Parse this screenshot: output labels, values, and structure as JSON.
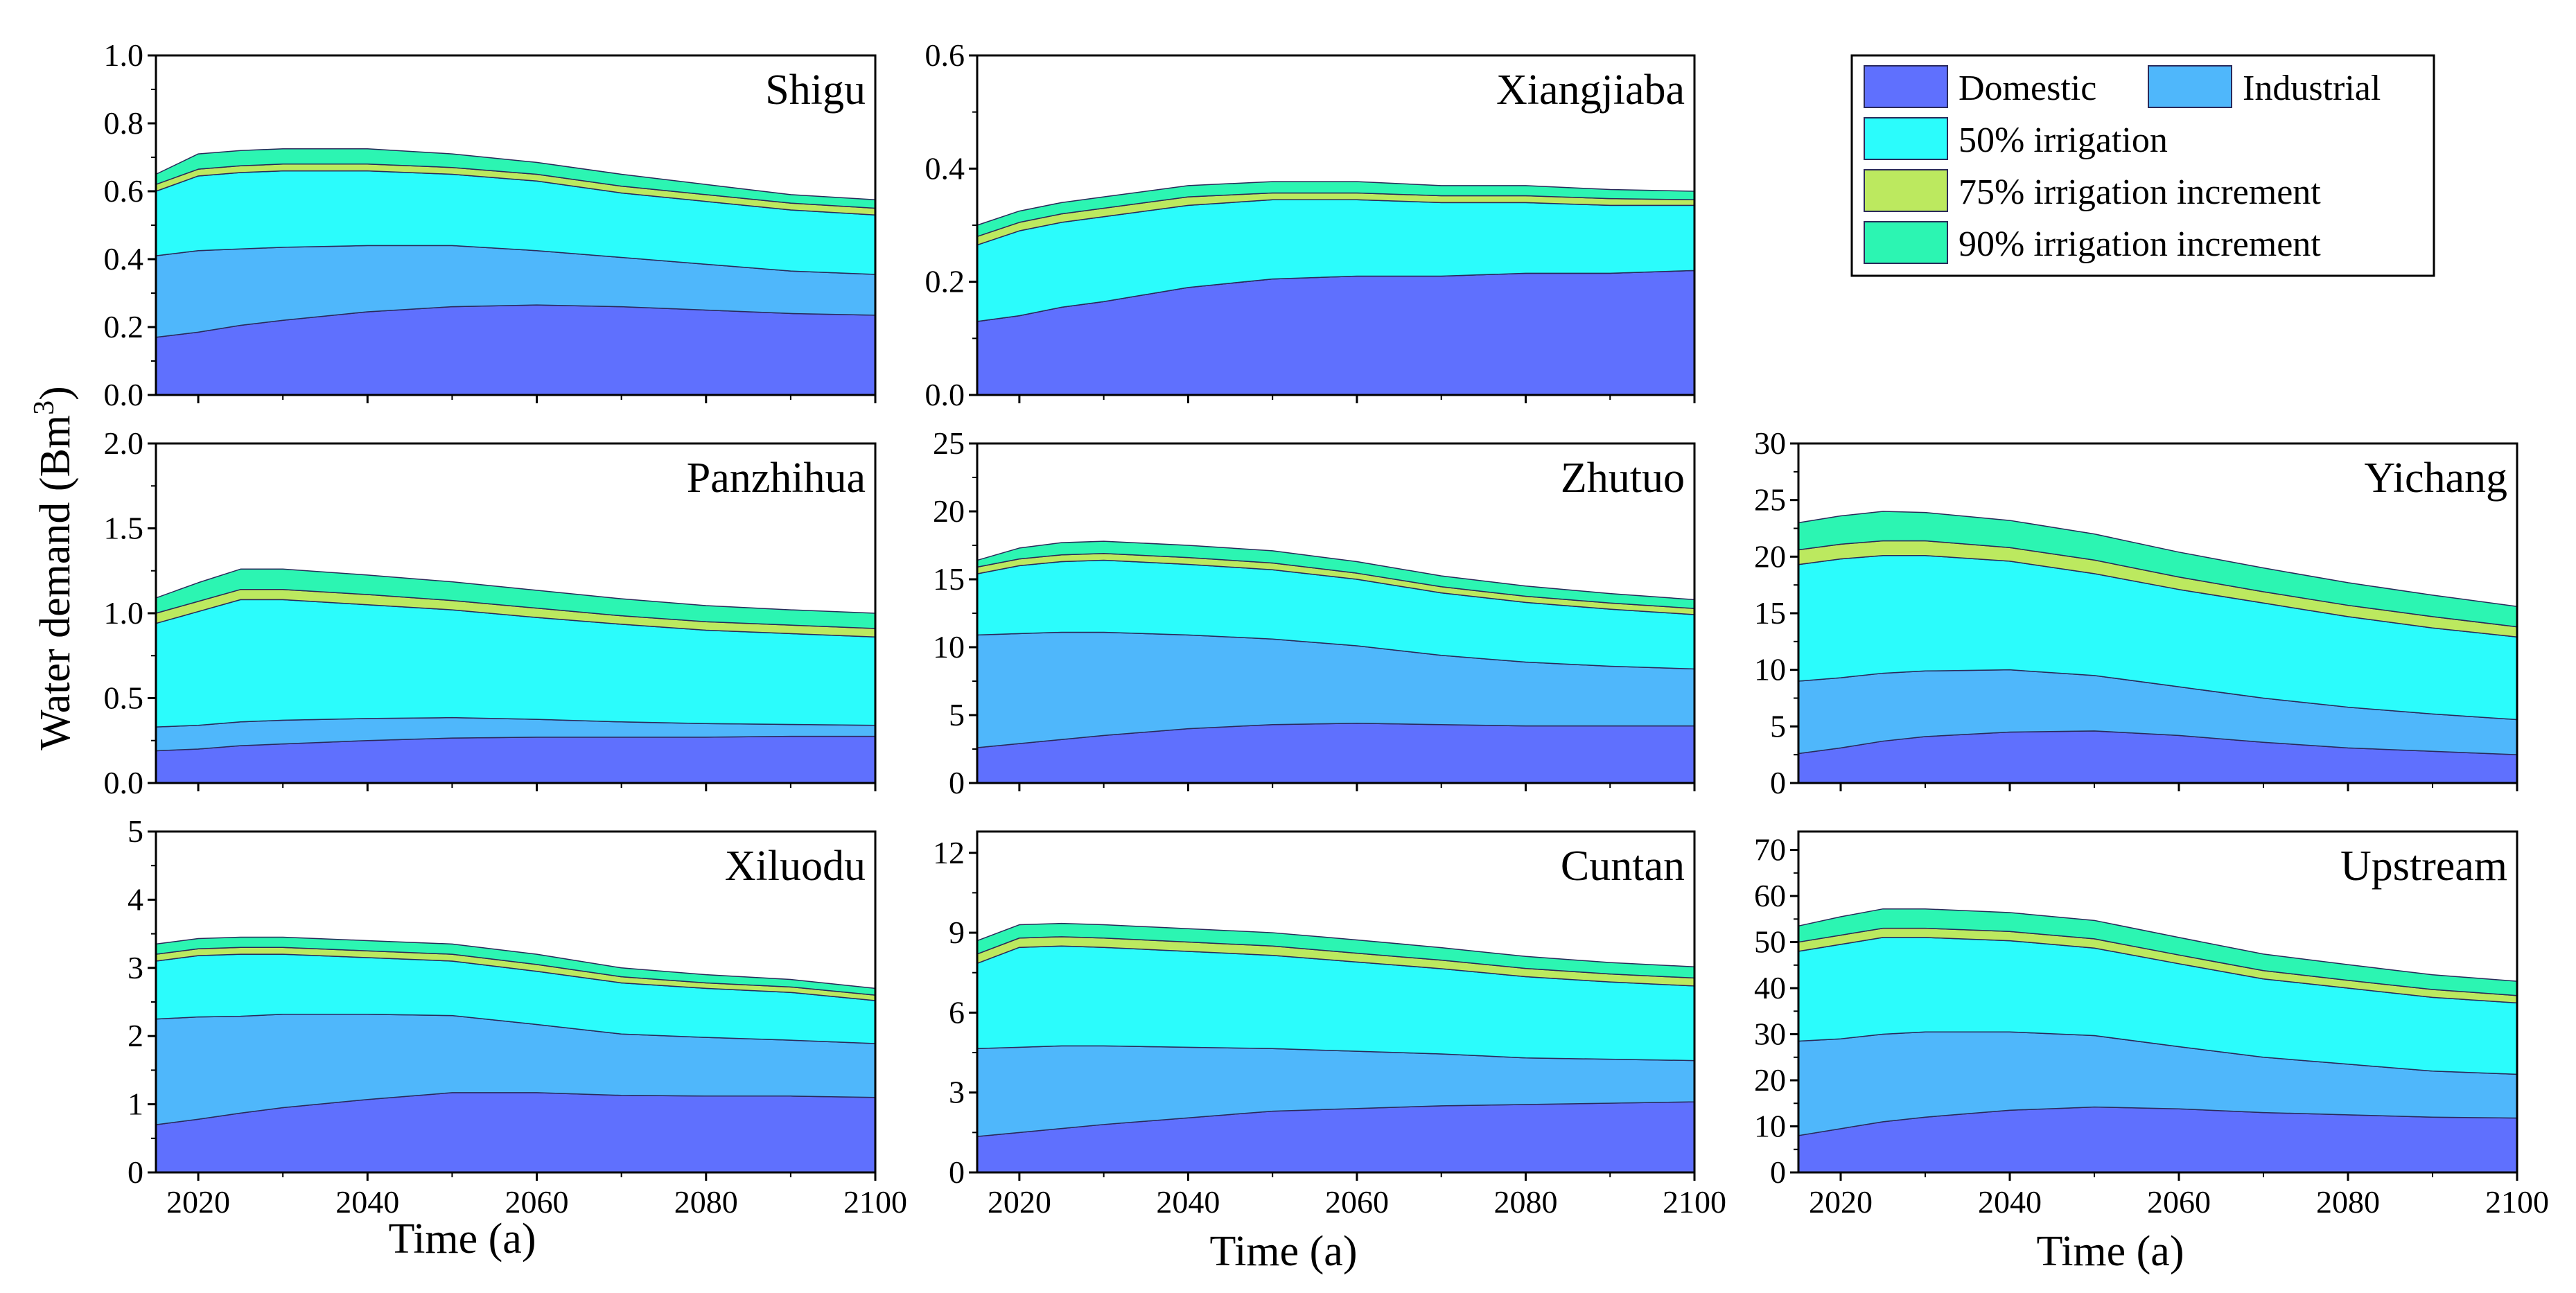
{
  "colors": {
    "domestic": "#5f70fe",
    "industrial": "#4fb7fb",
    "irr50": "#2bfcfc",
    "irr75": "#bce95f",
    "irr90": "#2cf5b2",
    "outline": "#2a2a5a"
  },
  "axis_labels": {
    "ylabel": "Water demand (Bm",
    "ylabel_sup": "3",
    "ylabel_close": ")",
    "xlabel": "Time (a)"
  },
  "legend": {
    "domestic": "Domestic",
    "industrial": "Industrial",
    "irr50": "50% irrigation",
    "irr75": "75% irrigation increment",
    "irr90": "90% irrigation increment"
  },
  "chart_data": [
    {
      "type": "area",
      "title": "Shigu",
      "xlim": [
        2015,
        2100
      ],
      "ylim": [
        0,
        1.0
      ],
      "yticks": [
        "0.0",
        "0.2",
        "0.4",
        "0.6",
        "0.8",
        "1.0"
      ],
      "xticks": [
        "",
        "",
        "",
        "",
        ""
      ],
      "xlabel": "",
      "x": [
        2015,
        2020,
        2025,
        2030,
        2040,
        2050,
        2060,
        2070,
        2080,
        2090,
        2100
      ],
      "series": [
        {
          "name": "Domestic",
          "values": [
            0.17,
            0.185,
            0.205,
            0.22,
            0.245,
            0.26,
            0.265,
            0.26,
            0.25,
            0.24,
            0.235
          ]
        },
        {
          "name": "Industrial",
          "values": [
            0.24,
            0.24,
            0.225,
            0.215,
            0.195,
            0.18,
            0.16,
            0.145,
            0.135,
            0.125,
            0.12
          ]
        },
        {
          "name": "50% irrigation",
          "values": [
            0.19,
            0.22,
            0.225,
            0.225,
            0.22,
            0.21,
            0.205,
            0.19,
            0.185,
            0.18,
            0.175
          ]
        },
        {
          "name": "75% irrigation increment",
          "values": [
            0.02,
            0.02,
            0.02,
            0.02,
            0.02,
            0.02,
            0.02,
            0.02,
            0.02,
            0.02,
            0.02
          ]
        },
        {
          "name": "90% irrigation increment",
          "values": [
            0.03,
            0.045,
            0.045,
            0.045,
            0.045,
            0.04,
            0.035,
            0.035,
            0.03,
            0.025,
            0.025
          ]
        }
      ]
    },
    {
      "type": "area",
      "title": "Xiangjiaba",
      "xlim": [
        2015,
        2100
      ],
      "ylim": [
        0,
        0.6
      ],
      "yticks": [
        "0.0",
        "0.2",
        "0.4",
        "0.6"
      ],
      "xticks": [
        "",
        "",
        "",
        "",
        ""
      ],
      "xlabel": "",
      "x": [
        2015,
        2020,
        2025,
        2030,
        2040,
        2050,
        2060,
        2070,
        2080,
        2090,
        2100
      ],
      "series": [
        {
          "name": "Domestic",
          "values": [
            0.13,
            0.14,
            0.155,
            0.165,
            0.19,
            0.205,
            0.21,
            0.21,
            0.215,
            0.215,
            0.22
          ]
        },
        {
          "name": "Industrial",
          "values": [
            0.0,
            0.0,
            0.0,
            0.0,
            0.0,
            0.0,
            0.0,
            0.0,
            0.0,
            0.0,
            0.0
          ]
        },
        {
          "name": "50% irrigation",
          "values": [
            0.135,
            0.15,
            0.15,
            0.15,
            0.145,
            0.14,
            0.135,
            0.13,
            0.125,
            0.12,
            0.115
          ]
        },
        {
          "name": "75% irrigation increment",
          "values": [
            0.015,
            0.015,
            0.015,
            0.015,
            0.015,
            0.012,
            0.012,
            0.012,
            0.012,
            0.012,
            0.01
          ]
        },
        {
          "name": "90% irrigation increment",
          "values": [
            0.02,
            0.02,
            0.02,
            0.02,
            0.02,
            0.02,
            0.02,
            0.018,
            0.018,
            0.016,
            0.015
          ]
        }
      ]
    },
    {
      "type": "area",
      "title": "Panzhihua",
      "xlim": [
        2015,
        2100
      ],
      "ylim": [
        0,
        2.0
      ],
      "yticks": [
        "0.0",
        "0.5",
        "1.0",
        "1.5",
        "2.0"
      ],
      "xticks": [
        "",
        "",
        "",
        "",
        ""
      ],
      "xlabel": "",
      "x": [
        2015,
        2020,
        2025,
        2030,
        2040,
        2050,
        2060,
        2070,
        2080,
        2090,
        2100
      ],
      "series": [
        {
          "name": "Domestic",
          "values": [
            0.19,
            0.2,
            0.22,
            0.23,
            0.25,
            0.265,
            0.27,
            0.27,
            0.27,
            0.275,
            0.275
          ]
        },
        {
          "name": "Industrial",
          "values": [
            0.14,
            0.14,
            0.14,
            0.14,
            0.13,
            0.12,
            0.105,
            0.09,
            0.08,
            0.07,
            0.065
          ]
        },
        {
          "name": "50% irrigation",
          "values": [
            0.61,
            0.67,
            0.72,
            0.71,
            0.67,
            0.635,
            0.6,
            0.575,
            0.55,
            0.535,
            0.52
          ]
        },
        {
          "name": "75% irrigation increment",
          "values": [
            0.06,
            0.06,
            0.06,
            0.06,
            0.06,
            0.055,
            0.055,
            0.05,
            0.05,
            0.05,
            0.05
          ]
        },
        {
          "name": "90% irrigation increment",
          "values": [
            0.09,
            0.11,
            0.12,
            0.12,
            0.115,
            0.11,
            0.105,
            0.1,
            0.095,
            0.09,
            0.09
          ]
        }
      ]
    },
    {
      "type": "area",
      "title": "Zhutuo",
      "xlim": [
        2015,
        2100
      ],
      "ylim": [
        0,
        25
      ],
      "yticks": [
        "0",
        "5",
        "10",
        "15",
        "20",
        "25"
      ],
      "xticks": [
        "",
        "",
        "",
        "",
        ""
      ],
      "xlabel": "",
      "x": [
        2015,
        2020,
        2025,
        2030,
        2040,
        2050,
        2060,
        2070,
        2080,
        2090,
        2100
      ],
      "series": [
        {
          "name": "Domestic",
          "values": [
            2.6,
            2.9,
            3.2,
            3.5,
            4.0,
            4.3,
            4.4,
            4.3,
            4.2,
            4.2,
            4.2
          ]
        },
        {
          "name": "Industrial",
          "values": [
            8.3,
            8.1,
            7.9,
            7.6,
            6.9,
            6.3,
            5.7,
            5.1,
            4.7,
            4.4,
            4.2
          ]
        },
        {
          "name": "50% irrigation",
          "values": [
            4.5,
            5.0,
            5.2,
            5.3,
            5.2,
            5.1,
            4.9,
            4.6,
            4.4,
            4.2,
            4.0
          ]
        },
        {
          "name": "75% irrigation increment",
          "values": [
            0.5,
            0.5,
            0.5,
            0.5,
            0.5,
            0.5,
            0.45,
            0.45,
            0.45,
            0.45,
            0.45
          ]
        },
        {
          "name": "90% irrigation increment",
          "values": [
            0.5,
            0.8,
            0.9,
            0.9,
            0.9,
            0.9,
            0.85,
            0.8,
            0.75,
            0.7,
            0.65
          ]
        }
      ]
    },
    {
      "type": "area",
      "title": "Yichang",
      "xlim": [
        2015,
        2100
      ],
      "ylim": [
        0,
        30
      ],
      "yticks": [
        "0",
        "5",
        "10",
        "15",
        "20",
        "25",
        "30"
      ],
      "xticks": [
        "",
        "",
        "",
        "",
        ""
      ],
      "xlabel": "",
      "x": [
        2015,
        2020,
        2025,
        2030,
        2040,
        2050,
        2060,
        2070,
        2080,
        2090,
        2100
      ],
      "series": [
        {
          "name": "Domestic",
          "values": [
            2.6,
            3.1,
            3.7,
            4.1,
            4.5,
            4.6,
            4.2,
            3.6,
            3.1,
            2.8,
            2.5
          ]
        },
        {
          "name": "Industrial",
          "values": [
            6.4,
            6.2,
            6.0,
            5.8,
            5.5,
            4.9,
            4.3,
            3.9,
            3.6,
            3.3,
            3.1
          ]
        },
        {
          "name": "50% irrigation",
          "values": [
            10.3,
            10.5,
            10.4,
            10.2,
            9.6,
            9.0,
            8.6,
            8.4,
            8.0,
            7.6,
            7.3
          ]
        },
        {
          "name": "75% irrigation increment",
          "values": [
            1.3,
            1.3,
            1.3,
            1.3,
            1.2,
            1.2,
            1.1,
            1.0,
            1.0,
            1.0,
            0.9
          ]
        },
        {
          "name": "90% irrigation increment",
          "values": [
            2.4,
            2.5,
            2.6,
            2.5,
            2.4,
            2.3,
            2.2,
            2.1,
            2.0,
            1.9,
            1.8
          ]
        }
      ]
    },
    {
      "type": "area",
      "title": "Xiluodu",
      "xlim": [
        2015,
        2100
      ],
      "ylim": [
        0,
        5
      ],
      "yticks": [
        "0",
        "1",
        "2",
        "3",
        "4",
        "5"
      ],
      "xticks": [
        "2020",
        "2040",
        "2060",
        "2080",
        "2100"
      ],
      "xlabel": "Time (a)",
      "x": [
        2015,
        2020,
        2025,
        2030,
        2040,
        2050,
        2060,
        2070,
        2080,
        2090,
        2100
      ],
      "series": [
        {
          "name": "Domestic",
          "values": [
            0.7,
            0.78,
            0.87,
            0.95,
            1.07,
            1.17,
            1.17,
            1.13,
            1.12,
            1.12,
            1.1
          ]
        },
        {
          "name": "Industrial",
          "values": [
            1.55,
            1.5,
            1.42,
            1.37,
            1.25,
            1.13,
            1.0,
            0.9,
            0.86,
            0.82,
            0.79
          ]
        },
        {
          "name": "50% irrigation",
          "values": [
            0.85,
            0.9,
            0.91,
            0.88,
            0.83,
            0.8,
            0.78,
            0.75,
            0.72,
            0.7,
            0.63
          ]
        },
        {
          "name": "75% irrigation increment",
          "values": [
            0.1,
            0.1,
            0.1,
            0.1,
            0.1,
            0.1,
            0.1,
            0.09,
            0.08,
            0.08,
            0.08
          ]
        },
        {
          "name": "90% irrigation increment",
          "values": [
            0.15,
            0.15,
            0.15,
            0.15,
            0.15,
            0.15,
            0.15,
            0.13,
            0.12,
            0.11,
            0.1
          ]
        }
      ]
    },
    {
      "type": "area",
      "title": "Cuntan",
      "xlim": [
        2015,
        2100
      ],
      "ylim": [
        0,
        12.8
      ],
      "yticks": [
        "0",
        "3",
        "6",
        "9",
        "12"
      ],
      "xticks": [
        "2020",
        "2040",
        "2060",
        "2080",
        "2100"
      ],
      "xlabel": "Time (a)",
      "x": [
        2015,
        2020,
        2025,
        2030,
        2040,
        2050,
        2060,
        2070,
        2080,
        2090,
        2100
      ],
      "series": [
        {
          "name": "Domestic",
          "values": [
            1.35,
            1.5,
            1.65,
            1.8,
            2.05,
            2.3,
            2.4,
            2.5,
            2.55,
            2.6,
            2.65
          ]
        },
        {
          "name": "Industrial",
          "values": [
            3.3,
            3.2,
            3.1,
            2.95,
            2.65,
            2.35,
            2.15,
            1.95,
            1.75,
            1.65,
            1.55
          ]
        },
        {
          "name": "50% irrigation",
          "values": [
            3.2,
            3.75,
            3.75,
            3.7,
            3.6,
            3.5,
            3.35,
            3.2,
            3.05,
            2.9,
            2.8
          ]
        },
        {
          "name": "75% irrigation increment",
          "values": [
            0.35,
            0.35,
            0.35,
            0.35,
            0.35,
            0.35,
            0.33,
            0.32,
            0.31,
            0.3,
            0.3
          ]
        },
        {
          "name": "90% irrigation increment",
          "values": [
            0.5,
            0.5,
            0.5,
            0.5,
            0.5,
            0.5,
            0.5,
            0.47,
            0.45,
            0.43,
            0.42
          ]
        }
      ]
    },
    {
      "type": "area",
      "title": "Upstream",
      "xlim": [
        2015,
        2100
      ],
      "ylim": [
        0,
        74
      ],
      "yticks": [
        "0",
        "10",
        "20",
        "30",
        "40",
        "50",
        "60",
        "70"
      ],
      "xticks": [
        "2020",
        "2040",
        "2060",
        "2080",
        "2100"
      ],
      "xlabel": "Time (a)",
      "x": [
        2015,
        2020,
        2025,
        2030,
        2040,
        2050,
        2060,
        2070,
        2080,
        2090,
        2100
      ],
      "series": [
        {
          "name": "Domestic",
          "values": [
            8.0,
            9.5,
            11.0,
            12.0,
            13.5,
            14.2,
            13.8,
            13.0,
            12.5,
            12.0,
            11.8
          ]
        },
        {
          "name": "Industrial",
          "values": [
            20.5,
            19.5,
            19.0,
            18.5,
            17.0,
            15.5,
            13.5,
            12.0,
            11.0,
            10.0,
            9.5
          ]
        },
        {
          "name": "50% irrigation",
          "values": [
            19.5,
            20.5,
            21.0,
            20.5,
            19.8,
            19.0,
            18.0,
            17.0,
            16.5,
            16.0,
            15.5
          ]
        },
        {
          "name": "75% irrigation increment",
          "values": [
            2.0,
            2.0,
            2.0,
            2.0,
            2.0,
            2.0,
            1.9,
            1.8,
            1.7,
            1.7,
            1.6
          ]
        },
        {
          "name": "90% irrigation increment",
          "values": [
            3.5,
            4.0,
            4.2,
            4.2,
            4.1,
            4.0,
            3.8,
            3.6,
            3.4,
            3.2,
            3.1
          ]
        }
      ]
    }
  ]
}
